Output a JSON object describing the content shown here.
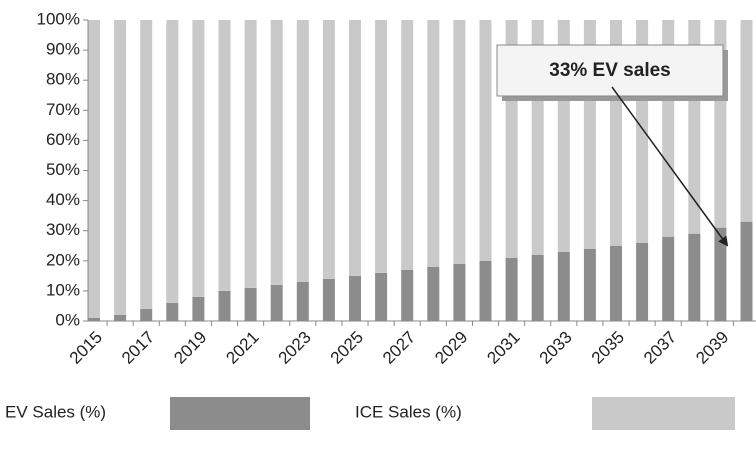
{
  "chart_data": {
    "type": "stacked_bar",
    "categories": [
      "2015",
      null,
      "2017",
      null,
      "2019",
      null,
      "2021",
      null,
      "2023",
      null,
      "2025",
      null,
      "2027",
      null,
      "2029",
      null,
      "2031",
      null,
      "2033",
      null,
      "2035",
      null,
      "2037",
      null,
      "2039",
      null
    ],
    "series": [
      {
        "name": "EV Sales (%)",
        "color": "#8c8c8c",
        "values": [
          1,
          2,
          4,
          6,
          8,
          10,
          11,
          12,
          13,
          14,
          15,
          16,
          17,
          18,
          19,
          20,
          21,
          22,
          23,
          24,
          25,
          26,
          28,
          29,
          31,
          33
        ]
      },
      {
        "name": "ICE Sales (%)",
        "color": "#c9c9c9",
        "values": [
          99,
          98,
          96,
          94,
          92,
          90,
          89,
          88,
          87,
          86,
          85,
          84,
          83,
          82,
          81,
          80,
          79,
          78,
          77,
          76,
          75,
          74,
          72,
          71,
          69,
          67
        ]
      }
    ],
    "ylim": [
      0,
      100
    ],
    "yticks": [
      {
        "value": 0,
        "label": "0%"
      },
      {
        "value": 10,
        "label": "10%"
      },
      {
        "value": 20,
        "label": "20%"
      },
      {
        "value": 30,
        "label": "30%"
      },
      {
        "value": 40,
        "label": "40%"
      },
      {
        "value": 50,
        "label": "50%"
      },
      {
        "value": 60,
        "label": "60%"
      },
      {
        "value": 70,
        "label": "70%"
      },
      {
        "value": 80,
        "label": "80%"
      },
      {
        "value": 90,
        "label": "90%"
      },
      {
        "value": 100,
        "label": "100%"
      }
    ],
    "annotation": "33% EV sales",
    "legend": "bottom"
  }
}
